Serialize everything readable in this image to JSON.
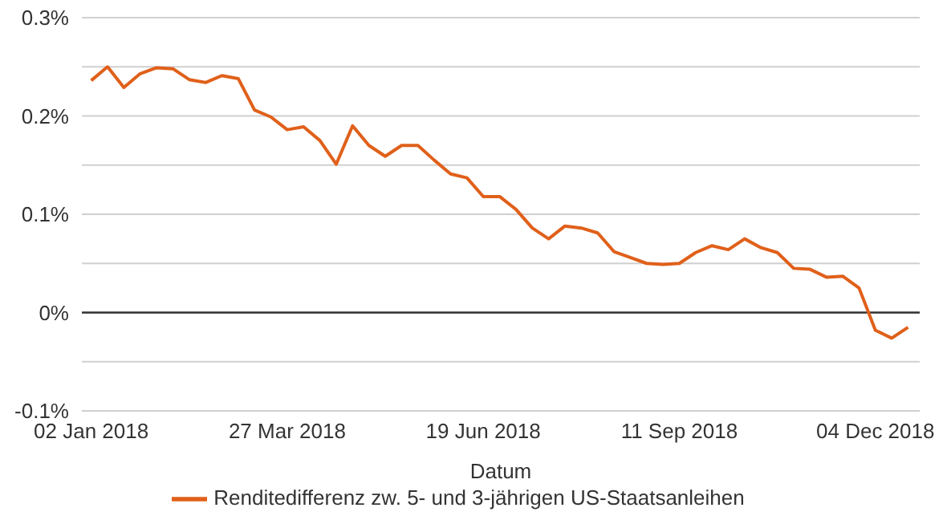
{
  "chart_data": {
    "type": "line",
    "xlabel": "Datum",
    "x": [
      "2018-01-02",
      "2018-01-09",
      "2018-01-16",
      "2018-01-23",
      "2018-01-30",
      "2018-02-06",
      "2018-02-13",
      "2018-02-20",
      "2018-02-27",
      "2018-03-06",
      "2018-03-13",
      "2018-03-20",
      "2018-03-27",
      "2018-04-03",
      "2018-04-10",
      "2018-04-17",
      "2018-04-24",
      "2018-05-01",
      "2018-05-08",
      "2018-05-15",
      "2018-05-22",
      "2018-05-29",
      "2018-06-05",
      "2018-06-12",
      "2018-06-19",
      "2018-06-26",
      "2018-07-03",
      "2018-07-10",
      "2018-07-17",
      "2018-07-24",
      "2018-07-31",
      "2018-08-07",
      "2018-08-14",
      "2018-08-21",
      "2018-08-28",
      "2018-09-04",
      "2018-09-11",
      "2018-09-18",
      "2018-09-25",
      "2018-10-02",
      "2018-10-09",
      "2018-10-16",
      "2018-10-23",
      "2018-10-30",
      "2018-11-06",
      "2018-11-13",
      "2018-11-20",
      "2018-11-27",
      "2018-12-04",
      "2018-12-11",
      "2018-12-18"
    ],
    "series": [
      {
        "name": "Renditedifferenz zw. 5- und 3-jährigen US-Staatsanleihen",
        "color": "#e0601a",
        "values": [
          0.236,
          0.25,
          0.229,
          0.243,
          0.249,
          0.248,
          0.237,
          0.234,
          0.241,
          0.238,
          0.206,
          0.199,
          0.186,
          0.189,
          0.175,
          0.151,
          0.19,
          0.17,
          0.159,
          0.17,
          0.17,
          0.155,
          0.141,
          0.137,
          0.118,
          0.118,
          0.105,
          0.086,
          0.075,
          0.088,
          0.086,
          0.081,
          0.062,
          0.056,
          0.05,
          0.049,
          0.05,
          0.061,
          0.068,
          0.064,
          0.075,
          0.066,
          0.061,
          0.045,
          0.044,
          0.036,
          0.037,
          0.025,
          -0.018,
          -0.026,
          -0.015
        ]
      }
    ],
    "xlim": [
      "2017-12-29",
      "2018-12-23"
    ],
    "xticks": [
      {
        "value": "2018-01-02",
        "label": "02 Jan 2018"
      },
      {
        "value": "2018-03-27",
        "label": "27 Mar 2018"
      },
      {
        "value": "2018-06-19",
        "label": "19 Jun 2018"
      },
      {
        "value": "2018-09-11",
        "label": "11 Sep 2018"
      },
      {
        "value": "2018-12-04",
        "label": "04 Dec 2018"
      }
    ],
    "ylim": [
      -0.1,
      0.3
    ],
    "yticks": [
      {
        "value": -0.1,
        "label": "-0.1%"
      },
      {
        "value": -0.05,
        "label": null
      },
      {
        "value": 0,
        "label": "0%"
      },
      {
        "value": 0.05,
        "label": null
      },
      {
        "value": 0.1,
        "label": "0.1%"
      },
      {
        "value": 0.15,
        "label": null
      },
      {
        "value": 0.2,
        "label": "0.2%"
      },
      {
        "value": 0.25,
        "label": null
      },
      {
        "value": 0.3,
        "label": "0.3%"
      }
    ],
    "ref_lines": [
      {
        "axis": "y",
        "value": 0,
        "color": "#333333"
      }
    ],
    "grid": "y",
    "legend": "bottom",
    "marker": "none",
    "line_style": "solid"
  }
}
